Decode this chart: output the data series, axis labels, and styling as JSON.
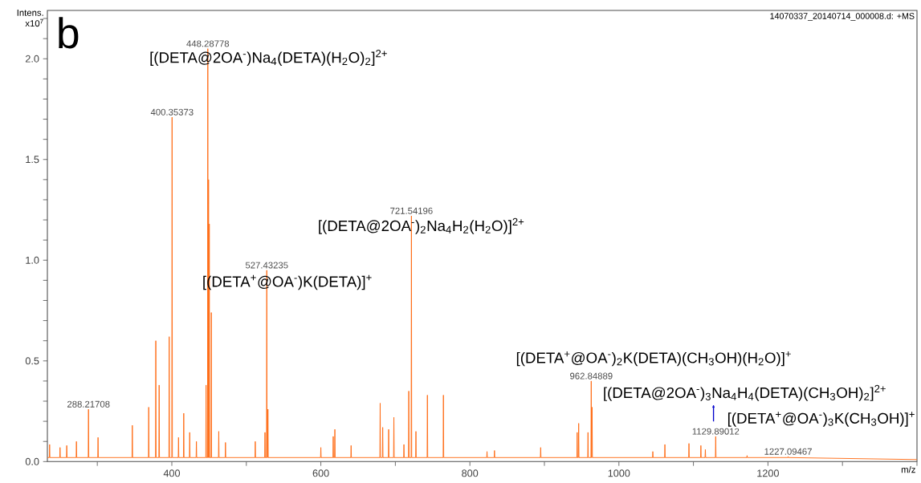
{
  "chart_data": {
    "type": "line",
    "title": "b",
    "xlabel": "m/z",
    "ylabel": "Intens. x10$^{7}$",
    "xlim": [
      233,
      1400
    ],
    "ylim": [
      0,
      2.24
    ],
    "xticks": [
      {
        "value": 300,
        "label": null
      },
      400,
      {
        "value": 500,
        "label": null
      },
      600,
      {
        "value": 700,
        "label": null
      },
      800,
      {
        "value": 900,
        "label": null
      },
      1000,
      {
        "value": 1100,
        "label": null
      },
      1200,
      {
        "value": 1300,
        "label": null
      },
      {
        "value": 1400,
        "label": null
      }
    ],
    "yticks": [
      {
        "value": 0,
        "label": "0.0"
      },
      {
        "value": 0.1,
        "label": null
      },
      {
        "value": 0.2,
        "label": null
      },
      {
        "value": 0.3,
        "label": null
      },
      {
        "value": 0.4,
        "label": null
      },
      0.5,
      {
        "value": 0.6,
        "label": null
      },
      {
        "value": 0.7,
        "label": null
      },
      {
        "value": 0.8,
        "label": null
      },
      {
        "value": 0.9,
        "label": null
      },
      {
        "value": 1,
        "label": "1.0"
      },
      {
        "value": 1.1,
        "label": null
      },
      {
        "value": 1.2,
        "label": null
      },
      {
        "value": 1.3,
        "label": null
      },
      {
        "value": 1.4,
        "label": null
      },
      1.5,
      {
        "value": 1.6,
        "label": null
      },
      {
        "value": 1.7,
        "label": null
      },
      {
        "value": 1.8,
        "label": null
      },
      {
        "value": 1.9,
        "label": null
      },
      {
        "value": 2,
        "label": "2.0"
      },
      {
        "value": 2.1,
        "label": null
      },
      {
        "value": 2.2,
        "label": null
      }
    ],
    "series": [
      {
        "color": "#ff6a13",
        "x": [
          233,
          235.6,
          236,
          236.4,
          249.6,
          250,
          250.4,
          258.6,
          259,
          259.4,
          271.6,
          272,
          272.4,
          287.8,
          288.2,
          288.6,
          300.6,
          301,
          301.4,
          346.6,
          347,
          347.4,
          368.6,
          369,
          369.4,
          378.1,
          378.5,
          378.9,
          382.6,
          383,
          383.4,
          396.1,
          396.5,
          396.9,
          399.95,
          400.35,
          400.75,
          408.6,
          409,
          409.4,
          415.6,
          416,
          416.4,
          423.6,
          424,
          424.4,
          432.6,
          433,
          433.4,
          445.6,
          446,
          446.4,
          447.89,
          448.29,
          448.69,
          448.9,
          449.3,
          449.7,
          449.9,
          450.3,
          450.7,
          452.6,
          453,
          453.4,
          462.6,
          463,
          463.4,
          471.6,
          472,
          472.4,
          511.6,
          512,
          512.4,
          524.6,
          525,
          525.4,
          527.03,
          527.43,
          527.83,
          528.6,
          529,
          529.4,
          599.6,
          600,
          600.4,
          616.2,
          616.6,
          617,
          618.4,
          618.8,
          619.2,
          640.2,
          640.6,
          641,
          679.2,
          679.6,
          680,
          682.6,
          683,
          683.4,
          690.6,
          691,
          691.4,
          697.6,
          698,
          698.4,
          711.1,
          711.5,
          711.9,
          717.6,
          718,
          718.4,
          721.14,
          721.54,
          721.94,
          727.2,
          727.6,
          728,
          742.6,
          743,
          743.4,
          764.1,
          764.5,
          764.9,
          822.6,
          823,
          823.4,
          832.6,
          833,
          833.4,
          894.6,
          895,
          895.4,
          943.6,
          944,
          944.4,
          945.6,
          946,
          946.4,
          958.1,
          958.5,
          958.9,
          962.45,
          962.85,
          963.25,
          963.6,
          964,
          964.4,
          1045.1,
          1045.5,
          1045.9,
          1061.3,
          1061.7,
          1062.1,
          1093.6,
          1094,
          1094.4,
          1109.6,
          1110,
          1110.4,
          1115.6,
          1116,
          1116.4,
          1129.49,
          1129.89,
          1130.29,
          1171.6,
          1172,
          1172.4,
          1226.69,
          1227.09,
          1227.49,
          1400
        ],
        "values": [
          0.02,
          0.02,
          0.085,
          0.02,
          0.02,
          0.07,
          0.02,
          0.02,
          0.08,
          0.02,
          0.02,
          0.1,
          0.02,
          0.02,
          0.26,
          0.02,
          0.02,
          0.12,
          0.02,
          0.02,
          0.18,
          0.02,
          0.02,
          0.27,
          0.02,
          0.02,
          0.6,
          0.02,
          0.02,
          0.38,
          0.02,
          0.02,
          0.62,
          0.02,
          0.02,
          1.71,
          0.02,
          0.02,
          0.12,
          0.02,
          0.02,
          0.24,
          0.02,
          0.02,
          0.145,
          0.02,
          0.02,
          0.1,
          0.02,
          0.02,
          0.38,
          0.02,
          0.02,
          2.05,
          0.02,
          0.02,
          1.4,
          0.02,
          0.02,
          1.18,
          0.02,
          0.02,
          0.74,
          0.02,
          0.02,
          0.15,
          0.02,
          0.02,
          0.095,
          0.02,
          0.02,
          0.1,
          0.02,
          0.02,
          0.145,
          0.02,
          0.02,
          0.95,
          0.02,
          0.02,
          0.26,
          0.02,
          0.02,
          0.07,
          0.02,
          0.02,
          0.125,
          0.02,
          0.02,
          0.16,
          0.02,
          0.02,
          0.08,
          0.02,
          0.02,
          0.29,
          0.02,
          0.02,
          0.17,
          0.02,
          0.02,
          0.16,
          0.02,
          0.02,
          0.22,
          0.02,
          0.02,
          0.085,
          0.02,
          0.02,
          0.35,
          0.02,
          0.02,
          1.22,
          0.02,
          0.02,
          0.15,
          0.02,
          0.02,
          0.33,
          0.02,
          0.02,
          0.33,
          0.02,
          0.02,
          0.05,
          0.02,
          0.02,
          0.055,
          0.02,
          0.02,
          0.07,
          0.02,
          0.02,
          0.145,
          0.02,
          0.02,
          0.19,
          0.02,
          0.02,
          0.145,
          0.02,
          0.02,
          0.4,
          0.02,
          0.02,
          0.27,
          0.02,
          0.02,
          0.05,
          0.02,
          0.02,
          0.085,
          0.02,
          0.02,
          0.09,
          0.02,
          0.02,
          0.08,
          0.02,
          0.02,
          0.06,
          0.02,
          0.02,
          0.125,
          0.02,
          0.02,
          0.03,
          0.02,
          0.02,
          0.025,
          0.02,
          0.01
        ]
      }
    ],
    "annotations": [
      {
        "text": "288.21708",
        "x": 288.2,
        "y": 0.26
      },
      {
        "text": "400.35373",
        "x": 400.35,
        "y": 1.71
      },
      {
        "text": "448.28778",
        "x": 448.29,
        "y": 2.05
      },
      {
        "text": "527.43235",
        "x": 527.43,
        "y": 0.95
      },
      {
        "text": "721.54196",
        "x": 721.54,
        "y": 1.22
      },
      {
        "text": "962.84889",
        "x": 962.85,
        "y": 0.4
      },
      {
        "text": "1129.89012",
        "x": 1129.89,
        "y": 0.125
      },
      {
        "text": "1227.09467",
        "x": 1227.09,
        "y": 0.025
      },
      "[(DETA@2OA$^{-}$)Na$_{4}$(DETA)(H$_{2}$O)$_{2}$]$^{2+}$",
      "[(DETA@2OA$^{-}$)$_{2}$Na$_{4}$H$_{2}$(H$_{2}$O)]$^{2+}$",
      "[(DETA$^{+}$@OA$^{-}$)K(DETA)]$^{+}$",
      "[(DETA$^{+}$@OA$^{-}$)$_{2}$K(DETA)(CH$_{3}$OH)(H$_{2}$O)]$^{+}$",
      "[(DETA@2OA$^{-}$)$_{3}$Na$_{4}$H$_{4}$(DETA)(CH$_{3}$OH)$_{2}$]$^{2+}$",
      "[(DETA$^{+}$@OA$^{-}$)$_{3}$K(CH$_{3}$OH)]$^{+}$",
      "14070337_20140714_000008.d: +MS"
    ]
  }
}
